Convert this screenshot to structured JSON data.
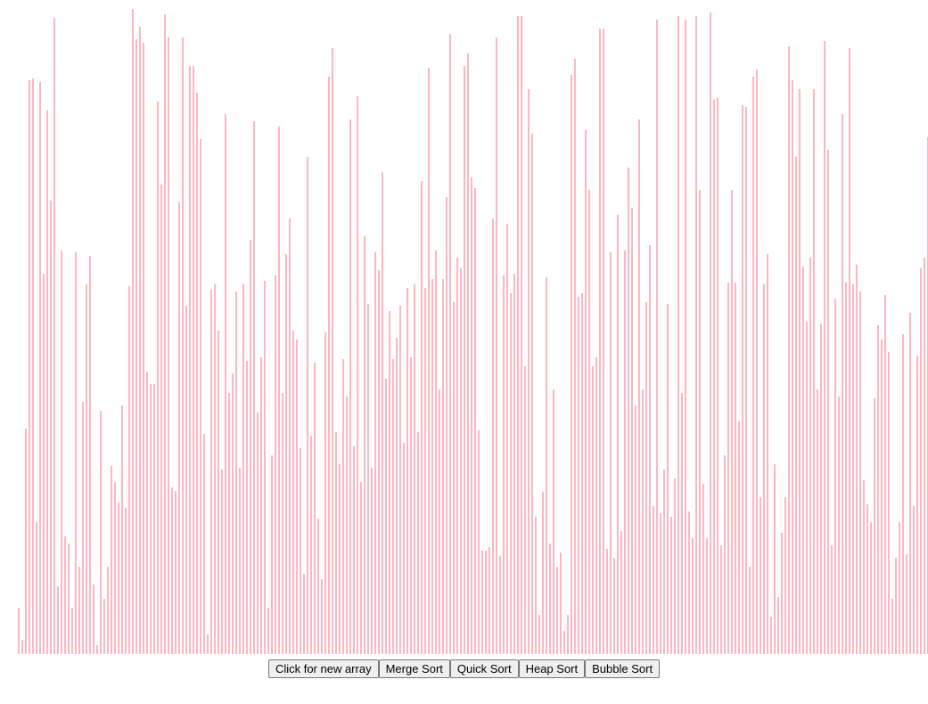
{
  "colors": {
    "bar": "#ffb6c1",
    "background": "#ffffff"
  },
  "array": {
    "max_value": 730,
    "values": [
      52,
      16,
      254,
      646,
      648,
      148,
      644,
      428,
      612,
      510,
      716,
      76,
      454,
      132,
      124,
      52,
      452,
      98,
      284,
      416,
      448,
      78,
      10,
      274,
      62,
      98,
      212,
      194,
      170,
      280,
      164,
      414,
      726,
      692,
      706,
      688,
      318,
      304,
      304,
      622,
      528,
      720,
      694,
      188,
      184,
      508,
      694,
      392,
      662,
      662,
      632,
      580,
      248,
      22,
      410,
      416,
      364,
      208,
      608,
      294,
      316,
      408,
      210,
      416,
      330,
      466,
      600,
      272,
      334,
      420,
      52,
      224,
      426,
      594,
      294,
      450,
      490,
      364,
      354,
      232,
      90,
      560,
      246,
      328,
      152,
      84,
      362,
      650,
      682,
      250,
      214,
      332,
      290,
      602,
      234,
      628,
      194,
      470,
      394,
      210,
      452,
      432,
      542,
      310,
      386,
      332,
      356,
      392,
      238,
      412,
      334,
      416,
      250,
      532,
      412,
      660,
      422,
      454,
      298,
      422,
      514,
      698,
      396,
      446,
      434,
      662,
      676,
      536,
      524,
      252,
      116,
      116,
      120,
      490,
      694,
      110,
      426,
      484,
      406,
      428,
      718,
      718,
      324,
      636,
      586,
      154,
      44,
      182,
      424,
      124,
      298,
      98,
      114,
      26,
      44,
      652,
      670,
      402,
      406,
      590,
      522,
      324,
      334,
      704,
      704,
      118,
      452,
      108,
      494,
      138,
      454,
      548,
      502,
      280,
      602,
      298,
      396,
      460,
      166,
      714,
      158,
      208,
      394,
      154,
      198,
      718,
      294,
      714,
      160,
      130,
      718,
      522,
      192,
      130,
      722,
      624,
      626,
      122,
      224,
      418,
      522,
      418,
      262,
      618,
      616,
      98,
      650,
      658,
      176,
      416,
      450,
      42,
      214,
      64,
      136,
      176,
      684,
      646,
      560,
      636,
      436,
      374,
      446,
      636,
      298,
      372,
      690,
      568,
      122,
      400,
      290,
      608,
      418,
      682,
      416,
      438,
      408,
      196,
      168,
      148,
      288,
      370,
      354,
      404,
      340,
      62,
      108,
      148,
      360,
      112,
      384,
      166,
      336,
      434,
      446,
      582,
      214,
      288,
      116,
      42,
      62,
      172,
      226,
      222,
      48,
      626
    ]
  },
  "buttons": {
    "new_array": "Click for new array",
    "merge_sort": "Merge Sort",
    "quick_sort": "Quick Sort",
    "heap_sort": "Heap Sort",
    "bubble_sort": "Bubble Sort"
  }
}
